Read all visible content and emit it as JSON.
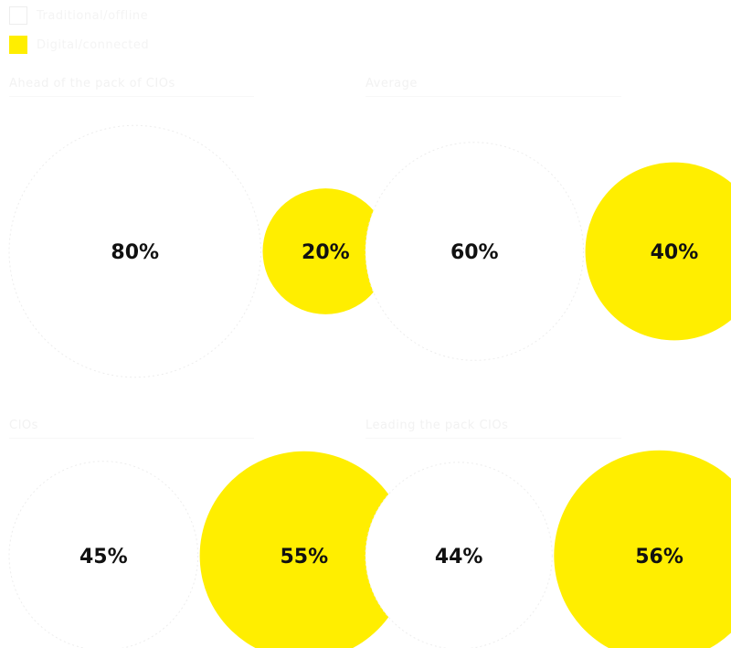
{
  "legend": {
    "traditional_label": "Traditional/offline",
    "digital_label": "Digital/connected"
  },
  "colors": {
    "traditional": "#ffffff",
    "traditional_stroke": "#ededed",
    "digital": "#ffee00",
    "label": "#111111"
  },
  "chart_data": [
    {
      "type": "bubble",
      "title": "Ahead of the pack of CIOs",
      "series": [
        {
          "name": "Traditional/offline",
          "value": 80
        },
        {
          "name": "Digital/connected",
          "value": 20
        }
      ]
    },
    {
      "type": "bubble",
      "title": "Average",
      "series": [
        {
          "name": "Traditional/offline",
          "value": 60
        },
        {
          "name": "Digital/connected",
          "value": 40
        }
      ]
    },
    {
      "type": "bubble",
      "title": "CIOs",
      "series": [
        {
          "name": "Traditional/offline",
          "value": 45
        },
        {
          "name": "Digital/connected",
          "value": 55
        }
      ]
    },
    {
      "type": "bubble",
      "title": "Leading the pack CIOs",
      "series": [
        {
          "name": "Traditional/offline",
          "value": 44
        },
        {
          "name": "Digital/connected",
          "value": 56
        }
      ]
    }
  ]
}
